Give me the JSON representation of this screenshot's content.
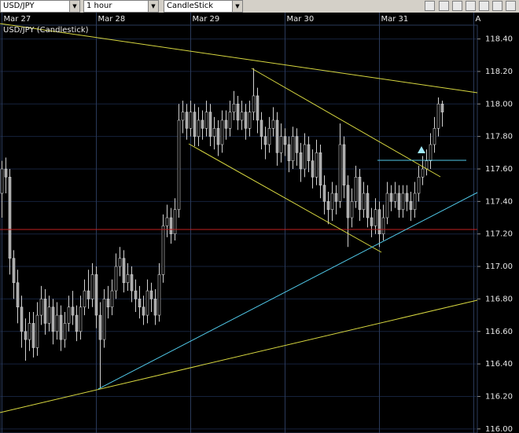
{
  "toolbar": {
    "symbol": "USD/JPY",
    "interval": "1 hour",
    "style": "CandleStick"
  },
  "chart_data": {
    "type": "candlestick",
    "title": "USD/JPY (Candlestick)",
    "up_color": "#000000",
    "down_color": "#a8a8a8",
    "wick_color": "#d0d0d0",
    "grid": true,
    "xlim": [
      -0.5,
      120.9
    ],
    "ylim": [
      115.975,
      118.485
    ],
    "xticks": [
      {
        "value": 0,
        "label": "Mar 27"
      },
      {
        "value": 24,
        "label": "Mar 28"
      },
      {
        "value": 48,
        "label": "Mar 29"
      },
      {
        "value": 72,
        "label": "Mar 30"
      },
      {
        "value": 96,
        "label": "Mar 31"
      },
      {
        "value": 120,
        "label": "A"
      }
    ],
    "yticks": [
      {
        "value": 116,
        "label": "116.00"
      },
      {
        "value": 116.2,
        "label": "116.20"
      },
      {
        "value": 116.4,
        "label": "116.40"
      },
      {
        "value": 116.6,
        "label": "116.60"
      },
      {
        "value": 116.8,
        "label": "116.80"
      },
      {
        "value": 117,
        "label": "117.00"
      },
      {
        "value": 117.2,
        "label": "117.20"
      },
      {
        "value": 117.4,
        "label": "117.40"
      },
      {
        "value": 117.6,
        "label": "117.60"
      },
      {
        "value": 117.8,
        "label": "117.80"
      },
      {
        "value": 118,
        "label": "118.00"
      },
      {
        "value": 118.2,
        "label": "118.20"
      },
      {
        "value": 118.4,
        "label": "118.40"
      }
    ],
    "x": [
      0,
      1,
      2,
      3,
      4,
      5,
      6,
      7,
      8,
      9,
      10,
      11,
      12,
      13,
      14,
      15,
      16,
      17,
      18,
      19,
      20,
      21,
      22,
      23,
      24,
      25,
      26,
      27,
      28,
      29,
      30,
      31,
      32,
      33,
      34,
      35,
      36,
      37,
      38,
      39,
      40,
      41,
      42,
      43,
      44,
      45,
      46,
      47,
      48,
      49,
      50,
      51,
      52,
      53,
      54,
      55,
      56,
      57,
      58,
      59,
      60,
      61,
      62,
      63,
      64,
      65,
      66,
      67,
      68,
      69,
      70,
      71,
      72,
      73,
      74,
      75,
      76,
      77,
      78,
      79,
      80,
      81,
      82,
      83,
      84,
      85,
      86,
      87,
      88,
      89,
      90,
      91,
      92,
      93,
      94,
      95,
      96,
      97,
      98,
      99,
      100,
      101,
      102,
      103,
      104,
      105,
      106,
      107,
      108,
      109,
      110,
      111,
      112
    ],
    "open": [
      117.45,
      117.6,
      117.55,
      117.05,
      116.9,
      116.75,
      116.6,
      116.55,
      116.65,
      116.5,
      116.7,
      116.8,
      116.65,
      116.75,
      116.6,
      116.7,
      116.55,
      116.65,
      116.75,
      116.7,
      116.6,
      116.75,
      116.85,
      116.8,
      116.95,
      116.7,
      116.55,
      116.8,
      116.75,
      116.85,
      117.0,
      117.05,
      116.9,
      116.95,
      116.85,
      116.8,
      116.75,
      116.7,
      116.85,
      116.8,
      116.7,
      116.95,
      117.25,
      117.3,
      117.2,
      117.35,
      117.9,
      117.95,
      117.85,
      117.95,
      117.8,
      117.9,
      117.85,
      117.95,
      117.8,
      117.85,
      117.75,
      117.9,
      117.85,
      117.95,
      118.0,
      117.9,
      117.95,
      117.85,
      117.95,
      118.05,
      117.9,
      117.8,
      117.75,
      117.85,
      117.9,
      117.7,
      117.8,
      117.75,
      117.65,
      117.8,
      117.7,
      117.6,
      117.75,
      117.65,
      117.55,
      117.7,
      117.5,
      117.4,
      117.35,
      117.45,
      117.4,
      117.75,
      117.5,
      117.3,
      117.4,
      117.55,
      117.35,
      117.45,
      117.3,
      117.25,
      117.35,
      117.2,
      117.3,
      117.45,
      117.4,
      117.45,
      117.35,
      117.45,
      117.4,
      117.35,
      117.45,
      117.55,
      117.6,
      117.65,
      117.75,
      117.85,
      118.0
    ],
    "high": [
      117.65,
      117.67,
      117.6,
      117.1,
      116.98,
      116.82,
      116.68,
      116.72,
      116.72,
      116.78,
      116.88,
      116.86,
      116.82,
      116.8,
      116.78,
      116.76,
      116.72,
      116.82,
      116.85,
      116.76,
      116.82,
      116.92,
      116.98,
      117.02,
      117.0,
      116.78,
      116.86,
      116.88,
      116.92,
      117.08,
      117.12,
      117.1,
      117.02,
      117.0,
      116.92,
      116.88,
      116.82,
      116.92,
      116.9,
      116.86,
      117.02,
      117.32,
      117.38,
      117.36,
      117.42,
      118.0,
      118.02,
      118.0,
      118.02,
      118.0,
      117.98,
      117.96,
      118.02,
      118.0,
      117.92,
      117.9,
      117.96,
      117.96,
      118.02,
      118.08,
      118.05,
      118.02,
      118.0,
      118.02,
      118.22,
      118.1,
      117.95,
      117.86,
      117.92,
      117.98,
      117.95,
      117.88,
      117.85,
      117.8,
      117.86,
      117.85,
      117.76,
      117.82,
      117.8,
      117.72,
      117.78,
      117.75,
      117.56,
      117.46,
      117.52,
      117.5,
      117.88,
      117.8,
      117.56,
      117.48,
      117.62,
      117.6,
      117.52,
      117.5,
      117.36,
      117.42,
      117.4,
      117.38,
      117.52,
      117.5,
      117.52,
      117.5,
      117.5,
      117.5,
      117.46,
      117.52,
      117.62,
      117.68,
      117.72,
      117.82,
      117.92,
      118.04,
      118.02
    ],
    "low": [
      117.3,
      117.45,
      116.95,
      116.8,
      116.65,
      116.5,
      116.42,
      116.48,
      116.44,
      116.45,
      116.64,
      116.58,
      116.6,
      116.52,
      116.55,
      116.48,
      116.5,
      116.6,
      116.64,
      116.54,
      116.55,
      116.7,
      116.74,
      116.75,
      116.62,
      116.25,
      116.5,
      116.68,
      116.7,
      116.8,
      116.94,
      116.84,
      116.85,
      116.78,
      116.72,
      116.68,
      116.64,
      116.65,
      116.72,
      116.64,
      116.66,
      116.9,
      117.18,
      117.14,
      117.16,
      117.3,
      117.82,
      117.78,
      117.8,
      117.74,
      117.74,
      117.78,
      117.8,
      117.74,
      117.72,
      117.68,
      117.7,
      117.78,
      117.8,
      117.9,
      117.84,
      117.84,
      117.78,
      117.8,
      117.9,
      117.82,
      117.72,
      117.66,
      117.7,
      117.8,
      117.62,
      117.64,
      117.68,
      117.58,
      117.6,
      117.62,
      117.52,
      117.55,
      117.58,
      117.48,
      117.5,
      117.42,
      117.32,
      117.26,
      117.28,
      117.32,
      117.36,
      117.42,
      117.12,
      117.24,
      117.36,
      117.28,
      117.3,
      117.24,
      117.18,
      117.2,
      117.12,
      117.16,
      117.26,
      117.34,
      117.36,
      117.3,
      117.3,
      117.34,
      117.28,
      117.3,
      117.4,
      117.5,
      117.56,
      117.6,
      117.7,
      117.8,
      117.86
    ],
    "close": [
      117.6,
      117.55,
      117.05,
      116.9,
      116.75,
      116.6,
      116.55,
      116.65,
      116.5,
      116.7,
      116.8,
      116.65,
      116.75,
      116.6,
      116.7,
      116.55,
      116.65,
      116.75,
      116.7,
      116.6,
      116.75,
      116.85,
      116.8,
      116.95,
      116.7,
      116.55,
      116.8,
      116.75,
      116.85,
      117.0,
      117.05,
      116.9,
      116.95,
      116.85,
      116.8,
      116.75,
      116.7,
      116.85,
      116.8,
      116.7,
      116.95,
      117.25,
      117.3,
      117.2,
      117.35,
      117.9,
      117.95,
      117.85,
      117.95,
      117.8,
      117.9,
      117.85,
      117.95,
      117.8,
      117.85,
      117.75,
      117.9,
      117.85,
      117.95,
      118.0,
      117.9,
      117.95,
      117.85,
      117.95,
      118.05,
      117.9,
      117.8,
      117.75,
      117.85,
      117.9,
      117.7,
      117.8,
      117.75,
      117.65,
      117.8,
      117.7,
      117.6,
      117.75,
      117.65,
      117.55,
      117.7,
      117.5,
      117.4,
      117.35,
      117.45,
      117.4,
      117.75,
      117.5,
      117.3,
      117.4,
      117.55,
      117.35,
      117.45,
      117.3,
      117.25,
      117.35,
      117.2,
      117.3,
      117.45,
      117.4,
      117.45,
      117.35,
      117.45,
      117.4,
      117.35,
      117.45,
      117.55,
      117.6,
      117.65,
      117.75,
      117.85,
      118.0,
      117.95
    ]
  }
}
